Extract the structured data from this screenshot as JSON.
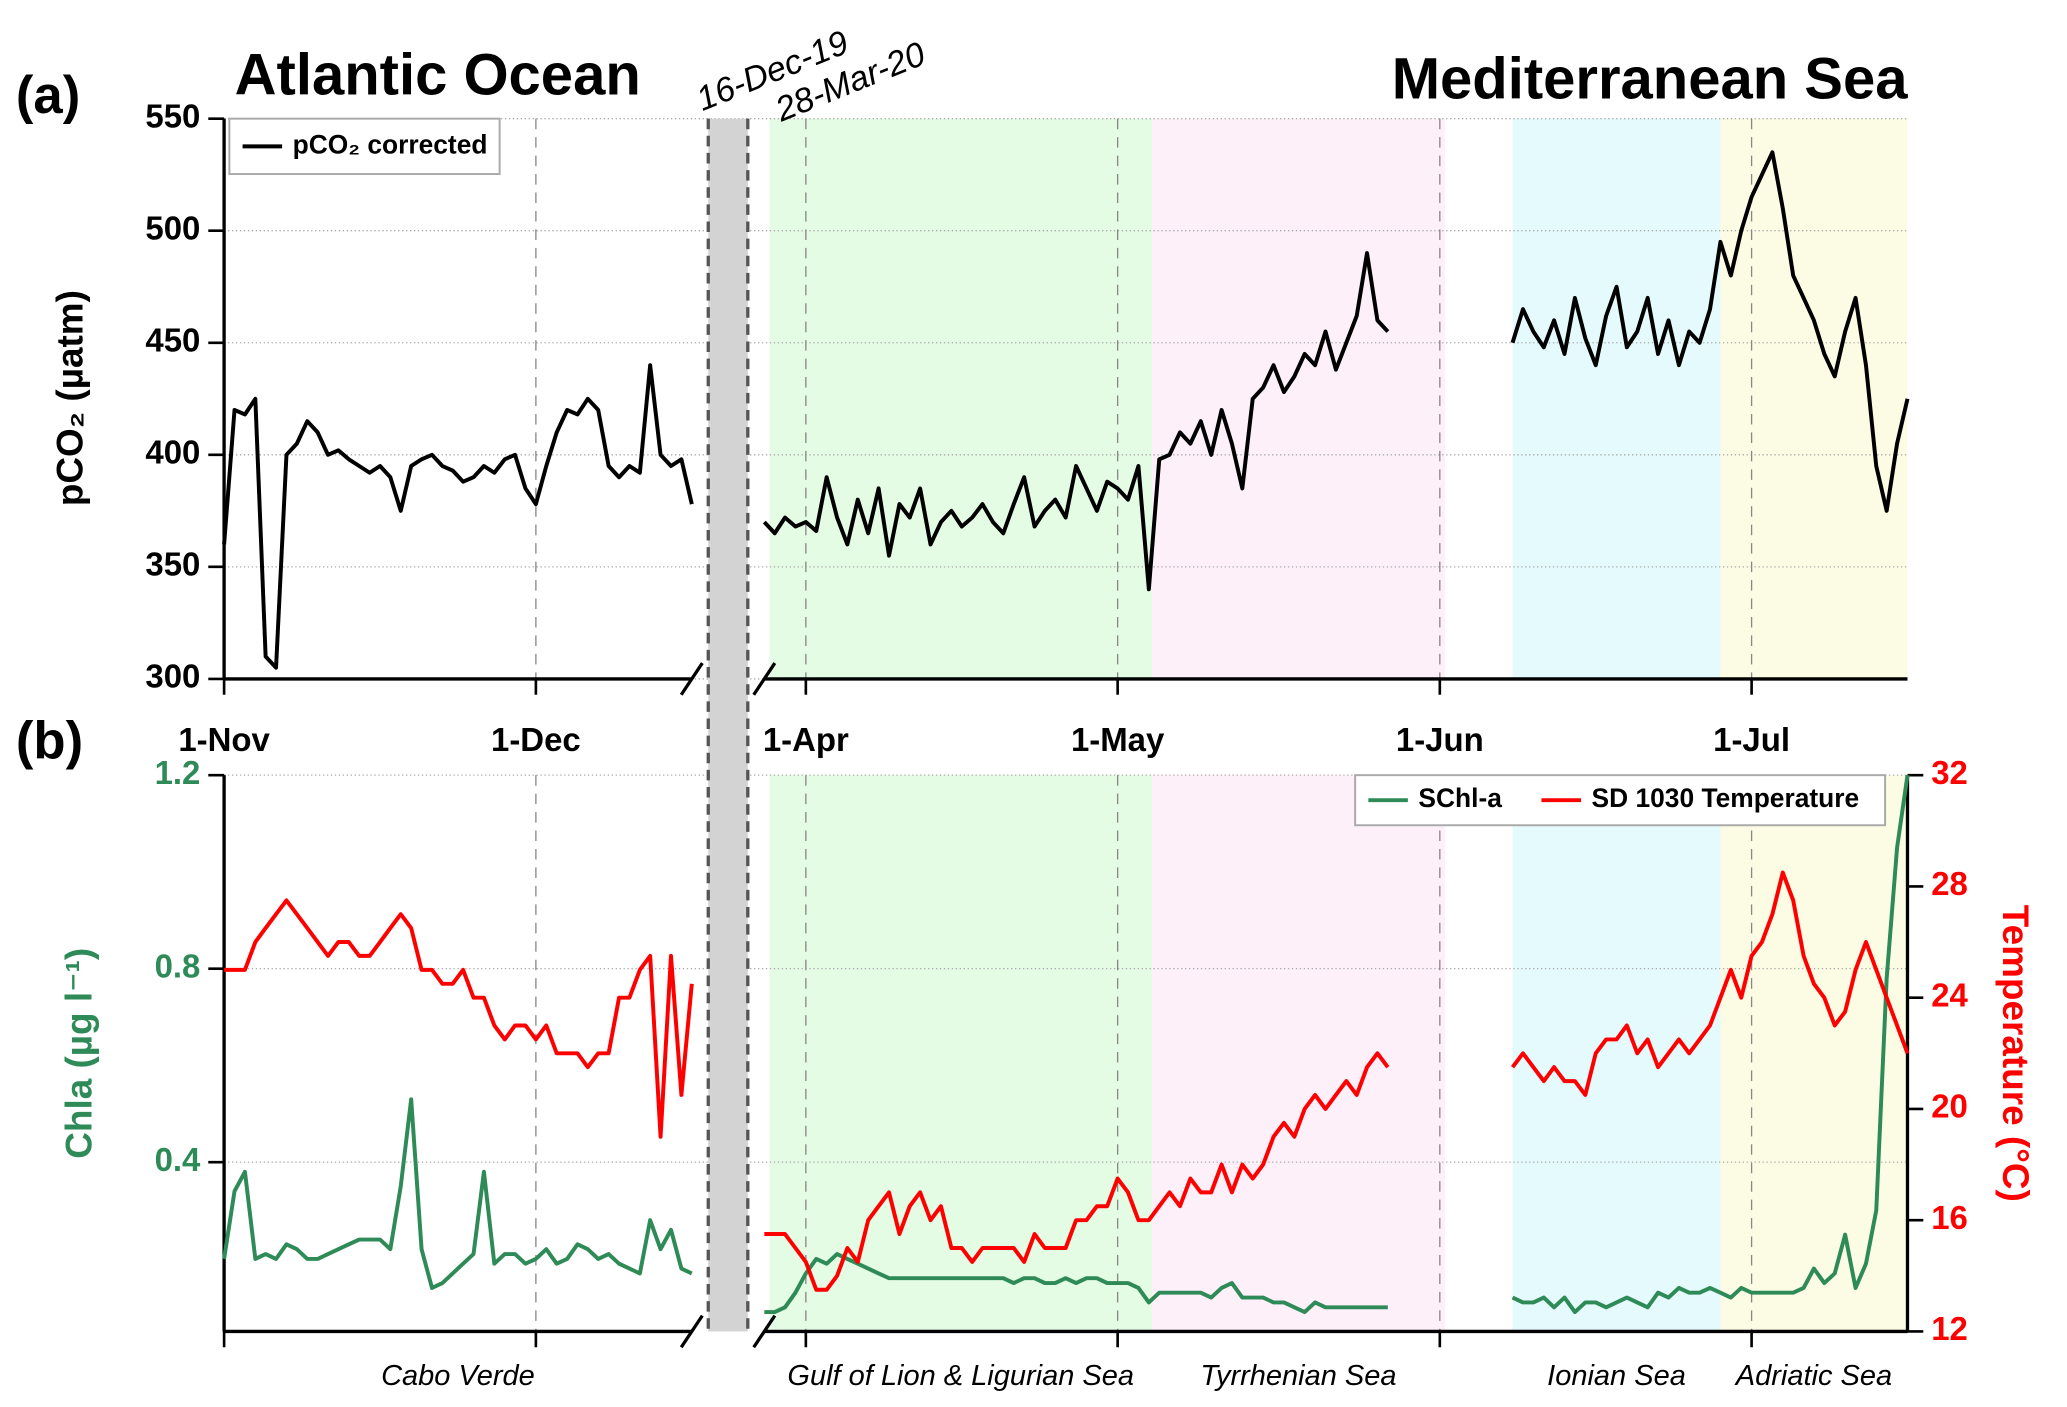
{
  "chart_data": [
    {
      "type": "line",
      "panel": "(a)",
      "title": "Atlantic Ocean",
      "subtitle": "Mediterranean Sea",
      "ylabel": "pCO₂ (µatm)",
      "xlim": [
        0,
        258
      ],
      "xbreak": [
        {
          "value": 45,
          "label": "16-Dec-19"
        },
        {
          "value": 148,
          "label": "28-Mar-20"
        }
      ],
      "xticks": [
        {
          "value": 0,
          "label": "1-Nov"
        },
        {
          "value": 30,
          "label": "1-Dec"
        },
        {
          "value": 152,
          "label": "1-Apr"
        },
        {
          "value": 182,
          "label": "1-May"
        },
        {
          "value": 213,
          "label": "1-Jun"
        },
        {
          "value": 243,
          "label": "1-Jul"
        }
      ],
      "ylim": [
        300,
        550
      ],
      "yticks": [
        300,
        350,
        400,
        450,
        500,
        550
      ],
      "grid": true,
      "x": [
        0,
        1,
        2,
        3,
        4,
        5,
        6,
        7,
        8,
        9,
        10,
        11,
        12,
        13,
        14,
        15,
        16,
        17,
        18,
        19,
        20,
        21,
        22,
        23,
        24,
        25,
        26,
        27,
        28,
        29,
        30,
        31,
        32,
        33,
        34,
        35,
        36,
        37,
        38,
        39,
        40,
        41,
        42,
        43,
        44,
        45,
        148,
        149,
        150,
        151,
        152,
        153,
        154,
        155,
        156,
        157,
        158,
        159,
        160,
        161,
        162,
        163,
        164,
        165,
        166,
        167,
        168,
        169,
        170,
        171,
        172,
        173,
        174,
        175,
        176,
        177,
        178,
        179,
        180,
        181,
        182,
        183,
        184,
        185,
        186,
        187,
        188,
        189,
        190,
        191,
        192,
        193,
        194,
        195,
        196,
        197,
        198,
        199,
        200,
        201,
        202,
        203,
        204,
        205,
        206,
        207,
        208,
        214,
        220,
        221,
        222,
        223,
        224,
        225,
        226,
        227,
        228,
        229,
        230,
        231,
        232,
        233,
        234,
        235,
        236,
        237,
        238,
        239,
        240,
        241,
        242,
        243,
        244,
        245,
        246,
        247,
        248,
        249,
        250,
        251,
        252,
        253,
        254,
        255,
        256,
        257,
        258
      ],
      "series": [
        {
          "name": "pCO₂ corrected",
          "color": "#000000",
          "values": [
            360,
            420,
            418,
            425,
            310,
            305,
            400,
            405,
            415,
            410,
            400,
            402,
            398,
            395,
            392,
            395,
            390,
            375,
            395,
            398,
            400,
            395,
            393,
            388,
            390,
            395,
            392,
            398,
            400,
            385,
            378,
            395,
            410,
            420,
            418,
            425,
            420,
            395,
            390,
            395,
            392,
            440,
            400,
            395,
            398,
            378,
            370,
            365,
            372,
            368,
            370,
            366,
            390,
            372,
            360,
            380,
            365,
            385,
            355,
            378,
            372,
            385,
            360,
            370,
            375,
            368,
            372,
            378,
            370,
            365,
            378,
            390,
            368,
            375,
            380,
            372,
            395,
            385,
            375,
            388,
            385,
            380,
            395,
            340,
            398,
            400,
            410,
            405,
            415,
            400,
            420,
            405,
            385,
            425,
            430,
            440,
            428,
            435,
            445,
            440,
            455,
            438,
            450,
            462,
            490,
            460,
            455,
            null,
            450,
            465,
            455,
            448,
            460,
            445,
            470,
            452,
            440,
            462,
            475,
            448,
            455,
            470,
            445,
            460,
            440,
            455,
            450,
            465,
            495,
            480,
            500,
            515,
            525,
            535,
            510,
            480,
            470,
            460,
            445,
            435,
            455,
            470,
            440,
            395,
            375,
            405,
            425
          ]
        }
      ],
      "legend": "upper left"
    },
    {
      "type": "line",
      "panel": "(b)",
      "ylabel": "Chla (µg l⁻¹)",
      "y2label": "Temperature (°C)",
      "ylim": [
        0.05,
        1.2
      ],
      "yticks": [
        0.4,
        0.8,
        1.2
      ],
      "y2lim": [
        12,
        32
      ],
      "y2ticks": [
        12,
        16,
        20,
        24,
        28,
        32
      ],
      "grid": true,
      "series": [
        {
          "name": "SChl-a",
          "color": "#2e8b57",
          "values": [
            0.2,
            0.34,
            0.38,
            0.2,
            0.21,
            0.2,
            0.23,
            0.22,
            0.2,
            0.2,
            0.21,
            0.22,
            0.23,
            0.24,
            0.24,
            0.24,
            0.22,
            0.35,
            0.53,
            0.22,
            0.14,
            0.15,
            0.17,
            0.19,
            0.21,
            0.38,
            0.19,
            0.21,
            0.21,
            0.19,
            0.2,
            0.22,
            0.19,
            0.2,
            0.23,
            0.22,
            0.2,
            0.21,
            0.19,
            0.18,
            0.17,
            0.28,
            0.22,
            0.26,
            0.18,
            0.17,
            0.09,
            0.09,
            0.1,
            0.13,
            0.17,
            0.2,
            0.19,
            0.21,
            0.2,
            0.19,
            0.18,
            0.17,
            0.16,
            0.16,
            0.16,
            0.16,
            0.16,
            0.16,
            0.16,
            0.16,
            0.16,
            0.16,
            0.16,
            0.16,
            0.15,
            0.16,
            0.16,
            0.15,
            0.15,
            0.16,
            0.15,
            0.16,
            0.16,
            0.15,
            0.15,
            0.15,
            0.14,
            0.11,
            0.13,
            0.13,
            0.13,
            0.13,
            0.13,
            0.12,
            0.14,
            0.15,
            0.12,
            0.12,
            0.12,
            0.11,
            0.11,
            0.1,
            0.09,
            0.11,
            0.1,
            0.1,
            0.1,
            0.1,
            0.1,
            0.1,
            0.1,
            null,
            0.12,
            0.11,
            0.11,
            0.12,
            0.1,
            0.12,
            0.09,
            0.11,
            0.11,
            0.1,
            0.11,
            0.12,
            0.11,
            0.1,
            0.13,
            0.12,
            0.14,
            0.13,
            0.13,
            0.14,
            0.13,
            0.12,
            0.14,
            0.13,
            0.13,
            0.13,
            0.13,
            0.13,
            0.14,
            0.18,
            0.15,
            0.17,
            0.25,
            0.14,
            0.19,
            0.3,
            0.78,
            1.05,
            1.2
          ]
        },
        {
          "name": "SD 1030 Temperature",
          "color": "#ff0000",
          "axis": "y2",
          "values": [
            25,
            25,
            25,
            26,
            26.5,
            27,
            27.5,
            27,
            26.5,
            26,
            25.5,
            26,
            26,
            25.5,
            25.5,
            26,
            26.5,
            27,
            26.5,
            25,
            25,
            24.5,
            24.5,
            25,
            24,
            24,
            23,
            22.5,
            23,
            23,
            22.5,
            23,
            22,
            22,
            22,
            21.5,
            22,
            22,
            24,
            24,
            25,
            25.5,
            19,
            25.5,
            20.5,
            24.5,
            15.5,
            15.5,
            15.5,
            15,
            14.5,
            13.5,
            13.5,
            14,
            15,
            14.5,
            16,
            16.5,
            17,
            15.5,
            16.5,
            17,
            16,
            16.5,
            15,
            15,
            14.5,
            15,
            15,
            15,
            15,
            14.5,
            15.5,
            15,
            15,
            15,
            16,
            16,
            16.5,
            16.5,
            17.5,
            17,
            16,
            16,
            16.5,
            17,
            16.5,
            17.5,
            17,
            17,
            18,
            17,
            18,
            17.5,
            18,
            19,
            19.5,
            19,
            20,
            20.5,
            20,
            20.5,
            21,
            20.5,
            21.5,
            22,
            21.5,
            null,
            21.5,
            22,
            21.5,
            21,
            21.5,
            21,
            21,
            20.5,
            22,
            22.5,
            22.5,
            23,
            22,
            22.5,
            21.5,
            22,
            22.5,
            22,
            22.5,
            23,
            24,
            25,
            24,
            25.5,
            26,
            27,
            28.5,
            27.5,
            25.5,
            24.5,
            24,
            23,
            23.5,
            25,
            26,
            25,
            24,
            23,
            22
          ]
        }
      ],
      "regions": [
        {
          "name": "Cabo Verde",
          "start": 0,
          "end": 45
        },
        {
          "name": "Gulf of Lion & Ligurian Sea",
          "start": 148.5,
          "end": 185.3,
          "color": "#e4fbe4"
        },
        {
          "name": "Tyrrhenian Sea",
          "start": 185.3,
          "end": 213.5,
          "color": "#fdf0f8"
        },
        {
          "name": "Ionian Sea",
          "start": 220,
          "end": 240,
          "color": "#e4fafd"
        },
        {
          "name": "Adriatic Sea",
          "start": 240,
          "end": 258,
          "color": "#fcfce4"
        }
      ],
      "legend": "upper right"
    }
  ]
}
